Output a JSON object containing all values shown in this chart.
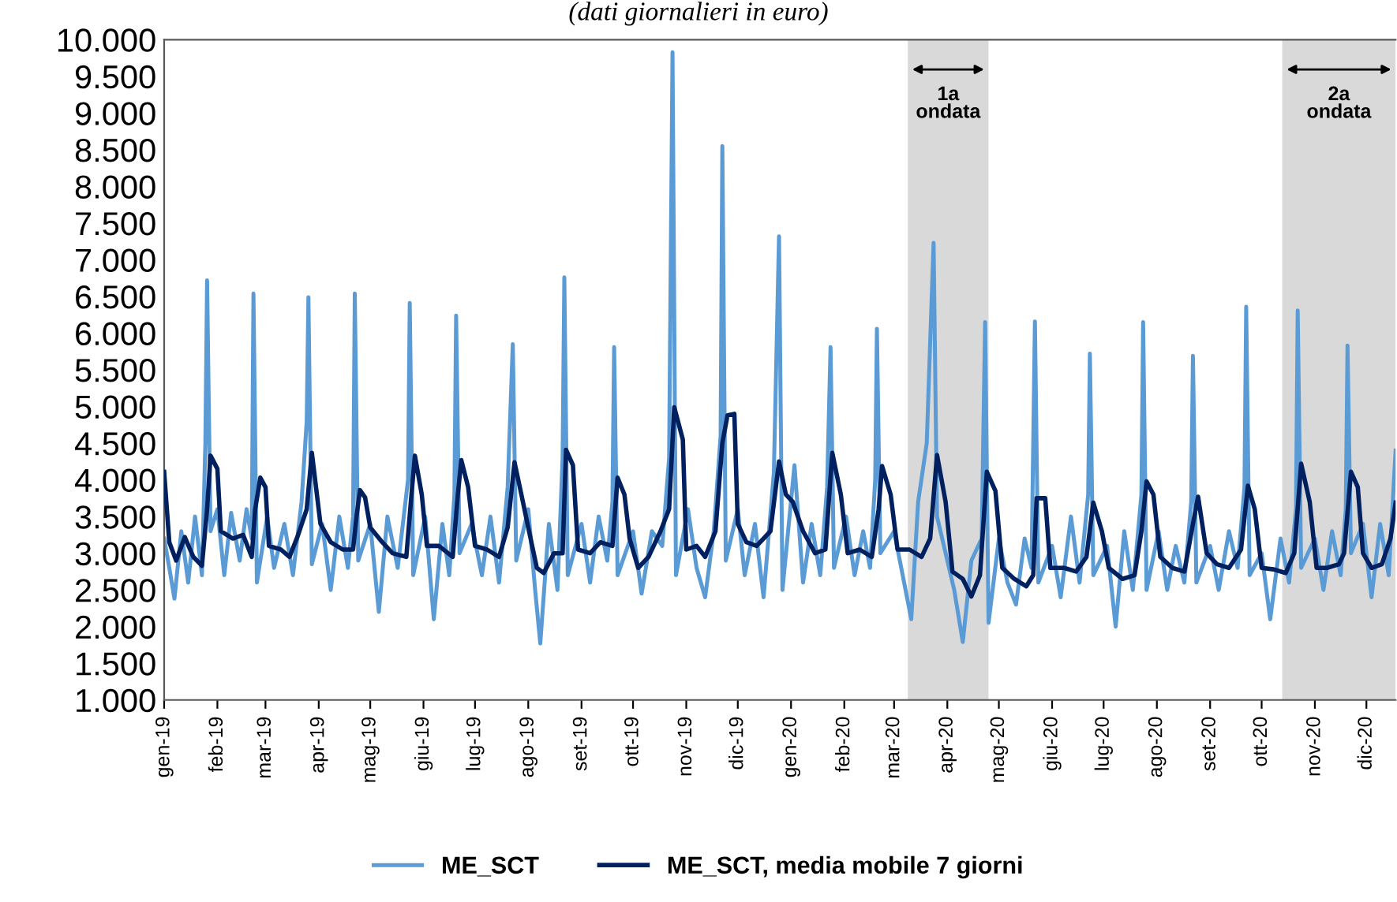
{
  "chart_data": {
    "type": "line",
    "subtitle": "(dati giornalieri in euro)",
    "xlim": [
      "2019-01-01",
      "2020-12-18"
    ],
    "xticks": [
      {
        "value": "2019-01-01",
        "label": "gen-19"
      },
      {
        "value": "2019-02-01",
        "label": "feb-19"
      },
      {
        "value": "2019-03-01",
        "label": "mar-19"
      },
      {
        "value": "2019-04-01",
        "label": "apr-19"
      },
      {
        "value": "2019-05-01",
        "label": "mag-19"
      },
      {
        "value": "2019-06-01",
        "label": "giu-19"
      },
      {
        "value": "2019-07-01",
        "label": "lug-19"
      },
      {
        "value": "2019-08-01",
        "label": "ago-19"
      },
      {
        "value": "2019-09-01",
        "label": "set-19"
      },
      {
        "value": "2019-10-01",
        "label": "ott-19"
      },
      {
        "value": "2019-11-01",
        "label": "nov-19"
      },
      {
        "value": "2019-12-01",
        "label": "dic-19"
      },
      {
        "value": "2020-01-01",
        "label": "gen-20"
      },
      {
        "value": "2020-02-01",
        "label": "feb-20"
      },
      {
        "value": "2020-03-01",
        "label": "mar-20"
      },
      {
        "value": "2020-04-01",
        "label": "apr-20"
      },
      {
        "value": "2020-05-01",
        "label": "mag-20"
      },
      {
        "value": "2020-06-01",
        "label": "giu-20"
      },
      {
        "value": "2020-07-01",
        "label": "lug-20"
      },
      {
        "value": "2020-08-01",
        "label": "ago-20"
      },
      {
        "value": "2020-09-01",
        "label": "set-20"
      },
      {
        "value": "2020-10-01",
        "label": "ott-20"
      },
      {
        "value": "2020-11-01",
        "label": "nov-20"
      },
      {
        "value": "2020-12-01",
        "label": "dic-20"
      }
    ],
    "ylim": [
      1000,
      10000
    ],
    "yticks": [
      {
        "value": 1000,
        "label": "1.000"
      },
      {
        "value": 1500,
        "label": "1.500"
      },
      {
        "value": 2000,
        "label": "2.000"
      },
      {
        "value": 2500,
        "label": "2.500"
      },
      {
        "value": 3000,
        "label": "3.000"
      },
      {
        "value": 3500,
        "label": "3.500"
      },
      {
        "value": 4000,
        "label": "4.000"
      },
      {
        "value": 4500,
        "label": "4.500"
      },
      {
        "value": 5000,
        "label": "5.000"
      },
      {
        "value": 5500,
        "label": "5.500"
      },
      {
        "value": 6000,
        "label": "6.000"
      },
      {
        "value": 6500,
        "label": "6.500"
      },
      {
        "value": 7000,
        "label": "7.000"
      },
      {
        "value": 7500,
        "label": "7.500"
      },
      {
        "value": 8000,
        "label": "8.000"
      },
      {
        "value": 8500,
        "label": "8.500"
      },
      {
        "value": 9000,
        "label": "9.000"
      },
      {
        "value": 9500,
        "label": "9.500"
      },
      {
        "value": 10000,
        "label": "10.000"
      }
    ],
    "grid": false,
    "legend": "bottom",
    "marker": "none",
    "line_style": "solid",
    "bands": [
      {
        "axis": "x",
        "from": "2020-03-09",
        "to": "2020-04-25",
        "label": "1a\nondata",
        "color": "#d9d9d9"
      },
      {
        "axis": "x",
        "from": "2020-10-13",
        "to": "2020-12-18",
        "label": "2a\nondata",
        "color": "#d9d9d9"
      }
    ],
    "series": [
      {
        "name": "ME_SCT",
        "color": "#5b9bd5",
        "x": [
          "2019-01-01",
          "2019-01-04",
          "2019-01-07",
          "2019-01-11",
          "2019-01-15",
          "2019-01-19",
          "2019-01-23",
          "2019-01-25",
          "2019-01-26",
          "2019-01-28",
          "2019-02-01",
          "2019-02-05",
          "2019-02-09",
          "2019-02-14",
          "2019-02-18",
          "2019-02-21",
          "2019-02-22",
          "2019-02-24",
          "2019-03-02",
          "2019-03-06",
          "2019-03-12",
          "2019-03-17",
          "2019-03-22",
          "2019-03-25",
          "2019-03-26",
          "2019-03-28",
          "2019-04-03",
          "2019-04-08",
          "2019-04-13",
          "2019-04-18",
          "2019-04-21",
          "2019-04-22",
          "2019-04-24",
          "2019-05-01",
          "2019-05-06",
          "2019-05-11",
          "2019-05-17",
          "2019-05-23",
          "2019-05-24",
          "2019-05-26",
          "2019-06-02",
          "2019-06-07",
          "2019-06-12",
          "2019-06-16",
          "2019-06-19",
          "2019-06-20",
          "2019-06-22",
          "2019-06-29",
          "2019-07-05",
          "2019-07-10",
          "2019-07-15",
          "2019-07-20",
          "2019-07-23",
          "2019-07-25",
          "2019-08-01",
          "2019-08-05",
          "2019-08-08",
          "2019-08-13",
          "2019-08-18",
          "2019-08-21",
          "2019-08-22",
          "2019-08-24",
          "2019-09-01",
          "2019-09-06",
          "2019-09-11",
          "2019-09-16",
          "2019-09-19",
          "2019-09-20",
          "2019-09-22",
          "2019-10-01",
          "2019-10-06",
          "2019-10-12",
          "2019-10-18",
          "2019-10-22",
          "2019-10-24",
          "2019-10-26",
          "2019-11-02",
          "2019-11-07",
          "2019-11-12",
          "2019-11-17",
          "2019-11-21",
          "2019-11-22",
          "2019-11-24",
          "2019-12-01",
          "2019-12-05",
          "2019-12-11",
          "2019-12-16",
          "2019-12-22",
          "2019-12-25",
          "2019-12-27",
          "2020-01-03",
          "2020-01-08",
          "2020-01-13",
          "2020-01-18",
          "2020-01-22",
          "2020-01-24",
          "2020-01-26",
          "2020-02-02",
          "2020-02-07",
          "2020-02-12",
          "2020-02-16",
          "2020-02-19",
          "2020-02-20",
          "2020-02-22",
          "2020-03-01",
          "2020-03-06",
          "2020-03-11",
          "2020-03-15",
          "2020-03-20",
          "2020-03-24",
          "2020-03-26",
          "2020-04-01",
          "2020-04-05",
          "2020-04-10",
          "2020-04-15",
          "2020-04-21",
          "2020-04-23",
          "2020-04-25",
          "2020-05-01",
          "2020-05-06",
          "2020-05-11",
          "2020-05-16",
          "2020-05-20",
          "2020-05-22",
          "2020-05-24",
          "2020-06-01",
          "2020-06-06",
          "2020-06-12",
          "2020-06-17",
          "2020-06-22",
          "2020-06-23",
          "2020-06-25",
          "2020-07-03",
          "2020-07-08",
          "2020-07-13",
          "2020-07-18",
          "2020-07-23",
          "2020-07-24",
          "2020-07-26",
          "2020-08-02",
          "2020-08-07",
          "2020-08-12",
          "2020-08-17",
          "2020-08-21",
          "2020-08-22",
          "2020-08-24",
          "2020-09-01",
          "2020-09-06",
          "2020-09-12",
          "2020-09-17",
          "2020-09-21",
          "2020-09-22",
          "2020-09-24",
          "2020-10-01",
          "2020-10-06",
          "2020-10-12",
          "2020-10-17",
          "2020-10-21",
          "2020-10-22",
          "2020-10-24",
          "2020-11-01",
          "2020-11-06",
          "2020-11-11",
          "2020-11-16",
          "2020-11-19",
          "2020-11-20",
          "2020-11-22",
          "2020-11-29",
          "2020-12-04",
          "2020-12-09",
          "2020-12-14",
          "2020-12-18"
        ],
        "values": [
          3200,
          2800,
          2380,
          3300,
          2600,
          3500,
          2700,
          4500,
          6720,
          3300,
          3600,
          2700,
          3550,
          2900,
          3600,
          3200,
          6540,
          2600,
          3500,
          2800,
          3400,
          2700,
          3700,
          4800,
          6490,
          2850,
          3400,
          2500,
          3500,
          2800,
          3500,
          6540,
          2900,
          3400,
          2200,
          3500,
          2800,
          4000,
          6410,
          2700,
          3500,
          2100,
          3400,
          2700,
          3800,
          6240,
          3000,
          3400,
          2700,
          3500,
          2600,
          3900,
          5850,
          2900,
          3600,
          2500,
          1770,
          3400,
          2500,
          4300,
          6760,
          2700,
          3400,
          2600,
          3500,
          2900,
          3700,
          5810,
          2700,
          3300,
          2450,
          3300,
          3100,
          4300,
          9830,
          2700,
          3600,
          2800,
          2400,
          3300,
          4600,
          8550,
          2900,
          3600,
          2700,
          3400,
          2400,
          4100,
          7320,
          2500,
          4200,
          2600,
          3400,
          2700,
          3900,
          5810,
          2800,
          3500,
          2700,
          3300,
          2800,
          4000,
          6060,
          3000,
          3300,
          2700,
          2100,
          3700,
          4500,
          7230,
          3500,
          2900,
          2500,
          1790,
          2900,
          3200,
          6150,
          2050,
          3200,
          2600,
          2300,
          3200,
          2800,
          6160,
          2600,
          3100,
          2400,
          3500,
          2600,
          3800,
          5720,
          2700,
          3100,
          2000,
          3300,
          2500,
          3800,
          6150,
          2500,
          3300,
          2500,
          3100,
          2600,
          3700,
          5690,
          2600,
          3100,
          2500,
          3300,
          2800,
          3900,
          6360,
          2700,
          3000,
          2100,
          3200,
          2600,
          3600,
          6310,
          2800,
          3200,
          2500,
          3300,
          2700,
          3600,
          5830,
          3000,
          3400,
          2400,
          3400,
          2700,
          4400
        ]
      },
      {
        "name": "ME_SCT, media mobile 7 giorni",
        "color": "#002060",
        "x": [
          "2019-01-01",
          "2019-01-04",
          "2019-01-08",
          "2019-01-13",
          "2019-01-18",
          "2019-01-23",
          "2019-01-26",
          "2019-01-28",
          "2019-02-01",
          "2019-02-03",
          "2019-02-10",
          "2019-02-16",
          "2019-02-21",
          "2019-02-23",
          "2019-02-26",
          "2019-03-01",
          "2019-03-03",
          "2019-03-10",
          "2019-03-15",
          "2019-03-20",
          "2019-03-25",
          "2019-03-28",
          "2019-04-02",
          "2019-04-08",
          "2019-04-15",
          "2019-04-21",
          "2019-04-23",
          "2019-04-25",
          "2019-04-28",
          "2019-05-01",
          "2019-05-08",
          "2019-05-14",
          "2019-05-22",
          "2019-05-25",
          "2019-05-27",
          "2019-05-31",
          "2019-06-03",
          "2019-06-10",
          "2019-06-18",
          "2019-06-21",
          "2019-06-23",
          "2019-06-27",
          "2019-07-01",
          "2019-07-08",
          "2019-07-15",
          "2019-07-20",
          "2019-07-24",
          "2019-07-28",
          "2019-08-01",
          "2019-08-06",
          "2019-08-10",
          "2019-08-16",
          "2019-08-21",
          "2019-08-23",
          "2019-08-27",
          "2019-08-30",
          "2019-09-06",
          "2019-09-12",
          "2019-09-19",
          "2019-09-22",
          "2019-09-26",
          "2019-09-29",
          "2019-10-04",
          "2019-10-10",
          "2019-10-17",
          "2019-10-22",
          "2019-10-25",
          "2019-10-30",
          "2019-11-01",
          "2019-11-07",
          "2019-11-12",
          "2019-11-18",
          "2019-11-22",
          "2019-11-25",
          "2019-11-29",
          "2019-12-01",
          "2019-12-06",
          "2019-12-12",
          "2019-12-20",
          "2019-12-25",
          "2019-12-29",
          "2020-01-02",
          "2020-01-08",
          "2020-01-15",
          "2020-01-21",
          "2020-01-25",
          "2020-01-30",
          "2020-02-03",
          "2020-02-10",
          "2020-02-17",
          "2020-02-21",
          "2020-02-23",
          "2020-02-28",
          "2020-03-03",
          "2020-03-10",
          "2020-03-17",
          "2020-03-22",
          "2020-03-26",
          "2020-03-31",
          "2020-04-04",
          "2020-04-10",
          "2020-04-15",
          "2020-04-20",
          "2020-04-24",
          "2020-04-29",
          "2020-05-03",
          "2020-05-10",
          "2020-05-17",
          "2020-05-21",
          "2020-05-23",
          "2020-05-28",
          "2020-05-31",
          "2020-06-08",
          "2020-06-15",
          "2020-06-21",
          "2020-06-25",
          "2020-06-30",
          "2020-07-04",
          "2020-07-12",
          "2020-07-19",
          "2020-07-23",
          "2020-07-26",
          "2020-07-30",
          "2020-08-03",
          "2020-08-10",
          "2020-08-17",
          "2020-08-22",
          "2020-08-25",
          "2020-08-30",
          "2020-09-05",
          "2020-09-12",
          "2020-09-19",
          "2020-09-23",
          "2020-09-27",
          "2020-10-01",
          "2020-10-08",
          "2020-10-15",
          "2020-10-20",
          "2020-10-24",
          "2020-10-29",
          "2020-11-02",
          "2020-11-08",
          "2020-11-15",
          "2020-11-18",
          "2020-11-22",
          "2020-11-26",
          "2020-11-29",
          "2020-12-04",
          "2020-12-10",
          "2020-12-15",
          "2020-12-18"
        ],
        "values": [
          4110,
          3150,
          2900,
          3220,
          2950,
          2830,
          3600,
          4330,
          4150,
          3300,
          3200,
          3250,
          2950,
          3600,
          4030,
          3900,
          3100,
          3050,
          2950,
          3250,
          3600,
          4370,
          3400,
          3150,
          3050,
          3050,
          3500,
          3860,
          3760,
          3350,
          3150,
          3000,
          2950,
          3800,
          4330,
          3800,
          3100,
          3100,
          2950,
          3800,
          4270,
          3900,
          3100,
          3050,
          2950,
          3350,
          4240,
          3800,
          3350,
          2800,
          2730,
          3000,
          3000,
          4410,
          4200,
          3050,
          3000,
          3150,
          3100,
          4030,
          3800,
          3200,
          2800,
          2950,
          3300,
          3600,
          4990,
          4550,
          3050,
          3100,
          2950,
          3300,
          4500,
          4880,
          4900,
          3400,
          3150,
          3100,
          3300,
          4250,
          3800,
          3700,
          3300,
          3000,
          3050,
          4370,
          3800,
          3000,
          3050,
          2950,
          3600,
          4190,
          3800,
          3050,
          3050,
          2950,
          3200,
          4340,
          3700,
          2750,
          2650,
          2410,
          2700,
          4110,
          3850,
          2800,
          2650,
          2550,
          2700,
          3750,
          3750,
          2800,
          2800,
          2750,
          2950,
          3690,
          3300,
          2800,
          2650,
          2700,
          3300,
          3980,
          3800,
          2950,
          2800,
          2750,
          3400,
          3770,
          3000,
          2850,
          2800,
          3050,
          3920,
          3600,
          2800,
          2780,
          2730,
          3000,
          4220,
          3700,
          2800,
          2800,
          2850,
          3000,
          4110,
          3900,
          3000,
          2800,
          2850,
          3200,
          3690
        ]
      }
    ]
  }
}
